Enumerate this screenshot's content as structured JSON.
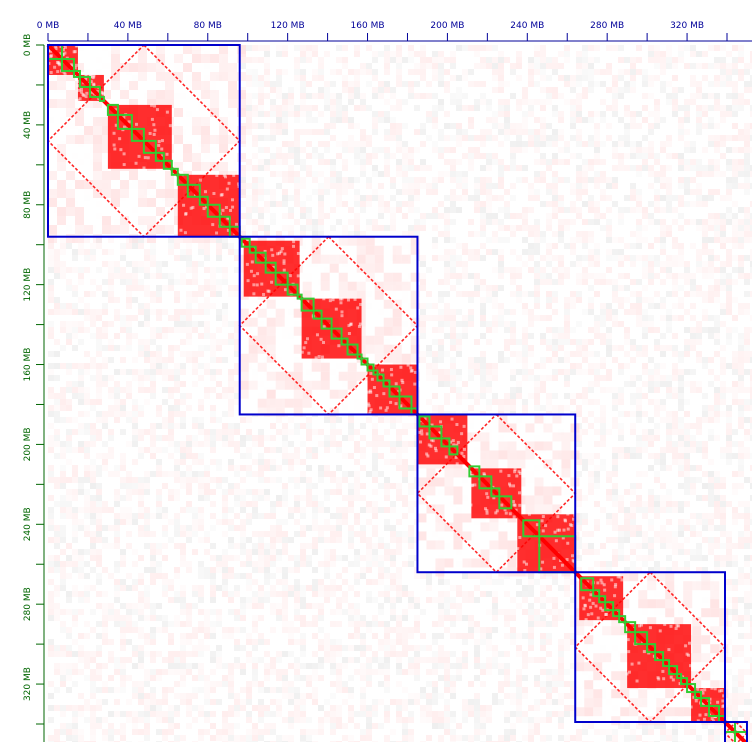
{
  "viewer": {
    "type": "hic-contact-map",
    "colors": {
      "background": "#ffffff",
      "contact": "#ff0000",
      "contact_faint": "#ffd9d9",
      "chromosome_border": "#0000cc",
      "domain_border": "#33cc33",
      "x_ruler": "#000099",
      "y_ruler": "#006600"
    },
    "unit": "MB",
    "axis_max_mb": 350,
    "x_axis": {
      "labels": [
        "0 MB",
        "40 MB",
        "80 MB",
        "120 MB",
        "160 MB",
        "200 MB",
        "240 MB",
        "280 MB",
        "320 MB"
      ],
      "values_mb": [
        0,
        40,
        80,
        120,
        160,
        200,
        240,
        280,
        320
      ]
    },
    "y_axis": {
      "labels": [
        "0 MB",
        "40 MB",
        "80 MB",
        "120 MB",
        "160 MB",
        "200 MB",
        "240 MB",
        "280 MB",
        "320 MB"
      ],
      "values_mb": [
        0,
        40,
        80,
        120,
        160,
        200,
        240,
        280,
        320
      ]
    },
    "chromosomes_mb": [
      {
        "start": 0,
        "end": 96
      },
      {
        "start": 96,
        "end": 185
      },
      {
        "start": 185,
        "end": 264
      },
      {
        "start": 264,
        "end": 339
      },
      {
        "start": 339,
        "end": 350
      }
    ],
    "compartments_mb": [
      [
        0,
        15
      ],
      [
        15,
        28
      ],
      [
        30,
        62
      ],
      [
        65,
        96
      ],
      [
        98,
        126
      ],
      [
        127,
        157
      ],
      [
        160,
        185
      ],
      [
        185,
        210
      ],
      [
        212,
        237
      ],
      [
        235,
        264
      ],
      [
        266,
        288
      ],
      [
        290,
        322
      ],
      [
        322,
        339
      ]
    ],
    "domains_mb": [
      [
        0,
        7
      ],
      [
        7,
        13
      ],
      [
        13,
        16
      ],
      [
        16,
        21
      ],
      [
        21,
        26
      ],
      [
        26,
        28
      ],
      [
        30,
        35
      ],
      [
        35,
        42
      ],
      [
        42,
        48
      ],
      [
        48,
        54
      ],
      [
        54,
        58
      ],
      [
        58,
        62
      ],
      [
        62,
        65
      ],
      [
        65,
        70
      ],
      [
        70,
        76
      ],
      [
        76,
        80
      ],
      [
        80,
        86
      ],
      [
        86,
        91
      ],
      [
        91,
        96
      ],
      [
        97,
        101
      ],
      [
        101,
        104
      ],
      [
        104,
        109
      ],
      [
        109,
        114
      ],
      [
        114,
        120
      ],
      [
        120,
        125
      ],
      [
        125,
        127
      ],
      [
        127,
        133
      ],
      [
        133,
        137
      ],
      [
        137,
        142
      ],
      [
        142,
        147
      ],
      [
        147,
        150
      ],
      [
        150,
        155
      ],
      [
        155,
        157
      ],
      [
        157,
        160
      ],
      [
        160,
        163
      ],
      [
        163,
        165
      ],
      [
        165,
        168
      ],
      [
        168,
        171
      ],
      [
        171,
        176
      ],
      [
        176,
        182
      ],
      [
        182,
        185
      ],
      [
        186,
        191
      ],
      [
        191,
        197
      ],
      [
        197,
        201
      ],
      [
        201,
        205
      ],
      [
        211,
        216
      ],
      [
        216,
        222
      ],
      [
        222,
        226
      ],
      [
        226,
        232
      ],
      [
        238,
        246
      ],
      [
        246,
        264
      ],
      [
        267,
        273
      ],
      [
        273,
        276
      ],
      [
        276,
        279
      ],
      [
        279,
        283
      ],
      [
        283,
        286
      ],
      [
        286,
        289
      ],
      [
        289,
        294
      ],
      [
        294,
        300
      ],
      [
        300,
        304
      ],
      [
        304,
        308
      ],
      [
        308,
        311
      ],
      [
        311,
        315
      ],
      [
        315,
        317
      ],
      [
        317,
        320
      ],
      [
        320,
        324
      ],
      [
        324,
        327
      ],
      [
        327,
        331
      ],
      [
        331,
        336
      ],
      [
        336,
        339
      ],
      [
        339,
        344
      ],
      [
        344,
        350
      ]
    ]
  }
}
